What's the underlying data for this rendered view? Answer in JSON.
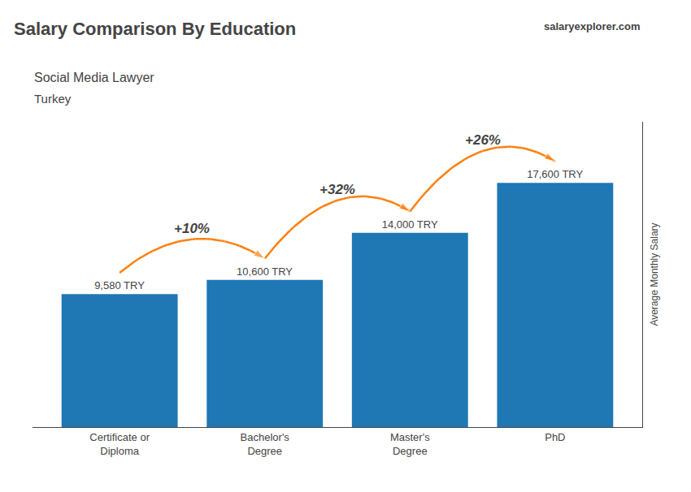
{
  "chart_data": {
    "type": "bar",
    "title": "Salary Comparison By Education",
    "subtitle": "Social Media Lawyer",
    "ylabel": "Average Monthly Salary",
    "categories": [
      "Certificate or\nDiploma",
      "Bachelor's\nDegree",
      "Master's\nDegree",
      "PhD"
    ],
    "values": [
      9580,
      10600,
      14000,
      17600
    ],
    "value_labels": [
      "9,580 TRY",
      "10,600 TRY",
      "14,000 TRY",
      "17,600 TRY"
    ],
    "data_labels": true,
    "ylim": [
      0,
      22000
    ],
    "tick_labels": "x",
    "grid": false,
    "annotations": [
      {
        "text": "Turkey"
      },
      {
        "text": "salaryexplorer.com"
      },
      {
        "text": "+10%",
        "from": 0,
        "to": 1
      },
      {
        "text": "+32%",
        "from": 1,
        "to": 2
      },
      {
        "text": "+26%",
        "from": 2,
        "to": 3
      }
    ]
  }
}
